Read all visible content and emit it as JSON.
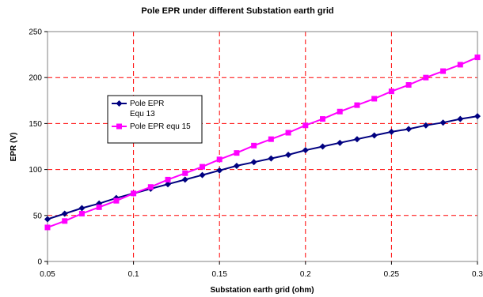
{
  "chart_data": {
    "type": "line",
    "title": "Pole EPR under different Substation earth grid",
    "xlabel": "Substation earth grid (ohm)",
    "ylabel": "EPR (V)",
    "xlim": [
      0.05,
      0.3
    ],
    "ylim": [
      0,
      250
    ],
    "x_ticks": [
      "0.05",
      "0.1",
      "0.15",
      "0.2",
      "0.25",
      "0.3"
    ],
    "y_ticks": [
      "0",
      "50",
      "100",
      "150",
      "200",
      "250"
    ],
    "grid": true,
    "legend_position": "left",
    "x": [
      0.05,
      0.06,
      0.07,
      0.08,
      0.09,
      0.1,
      0.11,
      0.12,
      0.13,
      0.14,
      0.15,
      0.16,
      0.17,
      0.18,
      0.19,
      0.2,
      0.21,
      0.22,
      0.23,
      0.24,
      0.25,
      0.26,
      0.27,
      0.28,
      0.29,
      0.3
    ],
    "series": [
      {
        "name": "Pole EPR Equ 13",
        "legend_lines": [
          "Pole EPR",
          "Equ 13"
        ],
        "color": "#000080",
        "marker": "diamond",
        "values": [
          46,
          52,
          58,
          63,
          69,
          74,
          79,
          84,
          89,
          94,
          99,
          104,
          108,
          112,
          116,
          121,
          125,
          129,
          133,
          137,
          141,
          144,
          148,
          151,
          155,
          158
        ]
      },
      {
        "name": "Pole EPR equ 15",
        "legend_lines": [
          "Pole EPR equ 15"
        ],
        "color": "#FF00FF",
        "marker": "square",
        "values": [
          37,
          44,
          52,
          59,
          66,
          74,
          81,
          89,
          96,
          103,
          111,
          118,
          126,
          133,
          140,
          148,
          155,
          163,
          170,
          177,
          185,
          192,
          200,
          207,
          214,
          222
        ]
      }
    ]
  }
}
